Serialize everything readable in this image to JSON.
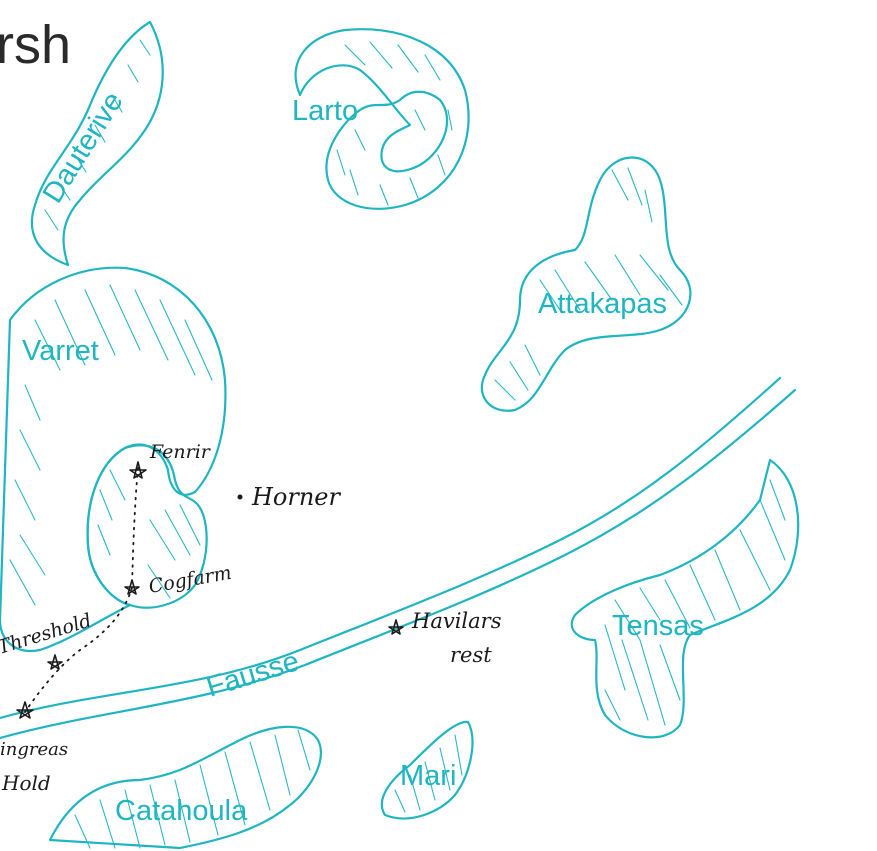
{
  "map": {
    "title": "rsh",
    "regions": {
      "dauterive": "Dauterive",
      "larto": "Larto",
      "attakapas": "Attakapas",
      "varret": "Varret",
      "tensas": "Tensas",
      "catahoula": "Catahoula",
      "mari": "Mari"
    },
    "river": "Fausse",
    "places": {
      "fenrir": "Fenrir",
      "horner": "Horner",
      "cogfarm": "Cogfarm",
      "threshold": "Threshold",
      "havilars_rest_1": "Havilars",
      "havilars_rest_2": "rest",
      "hold_1": "ingreas",
      "hold_2": "Hold"
    },
    "colors": {
      "water": "#1fb5c1",
      "ink": "#1a1a1a"
    }
  }
}
